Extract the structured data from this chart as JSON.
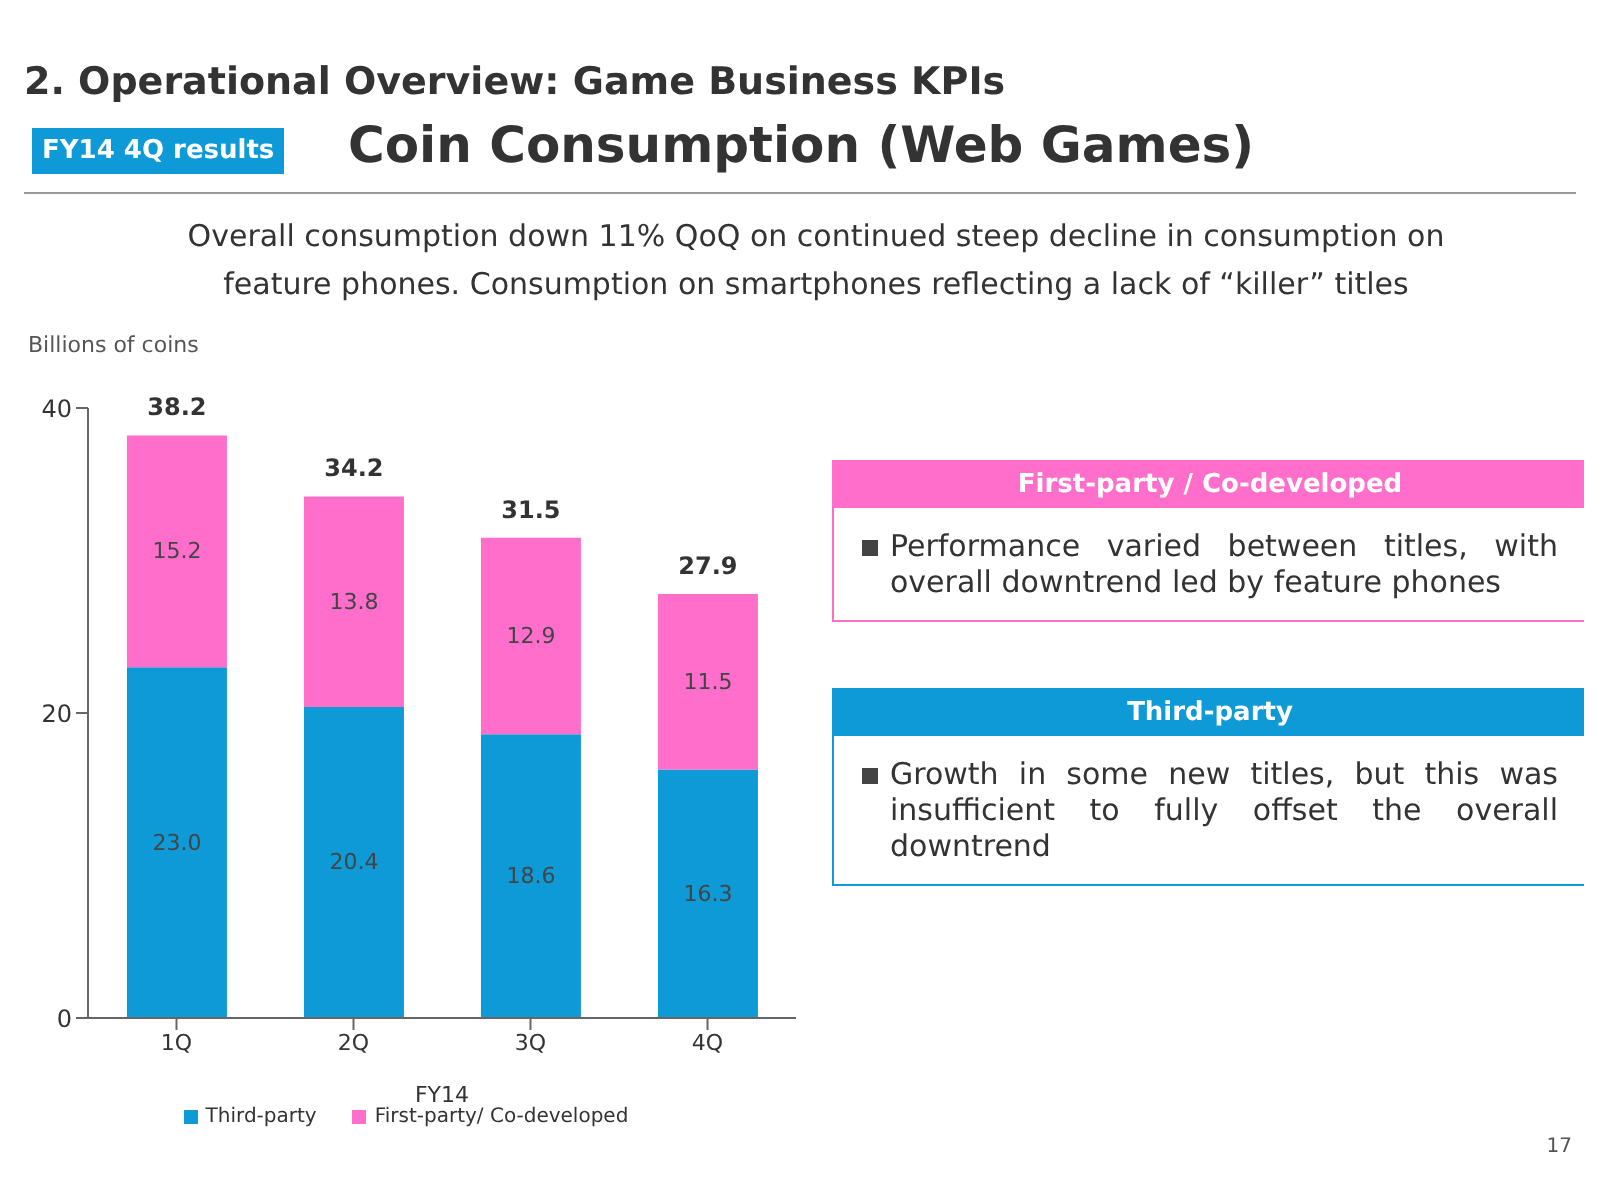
{
  "chart_data": {
    "type": "bar",
    "title": "2. Operational Overview: Game Business KPIs",
    "subtitle": "Coin Consumption (Web Games)",
    "ylabel": "Billions of coins",
    "xlabel": "FY14",
    "categories": [
      "1Q",
      "2Q",
      "3Q",
      "4Q"
    ],
    "stacked": true,
    "ylim": [
      0,
      40
    ],
    "yticks": [
      0,
      20,
      40
    ],
    "grid": false,
    "legend": "bottom",
    "series": [
      {
        "name": "Third-party",
        "color": "#0e9ad6",
        "values": [
          23.0,
          20.4,
          18.6,
          16.3
        ],
        "value_labels": [
          "23.0",
          "20.4",
          "18.6",
          "16.3"
        ]
      },
      {
        "name": "First-party/ Co-developed",
        "color": "#ff6ecb",
        "values": [
          15.2,
          13.8,
          12.9,
          11.5
        ],
        "value_labels": [
          "15.2",
          "13.8",
          "12.9",
          "11.5"
        ]
      }
    ],
    "totals": [
      "38.2",
      "34.2",
      "31.5",
      "27.9"
    ],
    "annotations": [
      "FY14 4Q results",
      "Overall consumption down 11% QoQ on continued steep decline in consumption on feature phones. Consumption on smartphones reflecting a lack of “killer” titles",
      "First-party / Co-developed",
      "Performance varied between titles, with overall downtrend led by feature phones",
      "Third-party",
      "Growth in some new titles, but this was insufficient to fully offset the overall downtrend",
      "17"
    ]
  }
}
